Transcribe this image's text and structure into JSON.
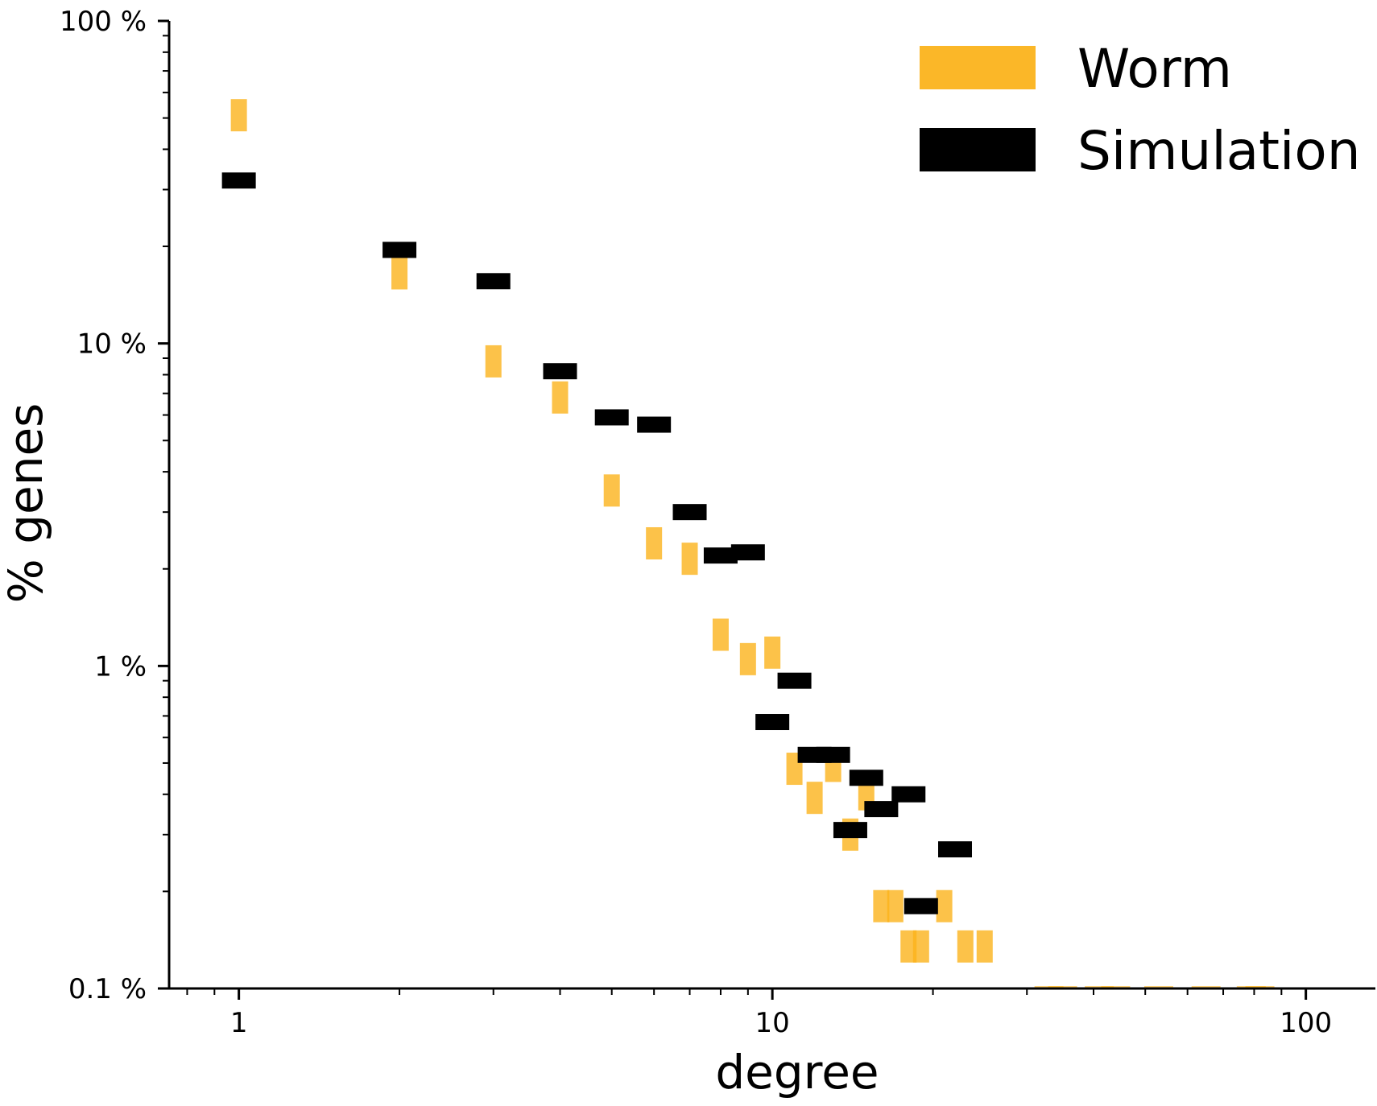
{
  "chart_data": {
    "type": "scatter",
    "xlabel": "degree",
    "ylabel": "% genes",
    "x_scale": "log",
    "y_scale": "log",
    "xlim": [
      0.74,
      135
    ],
    "ylim": [
      0.1,
      100
    ],
    "x_ticks": [
      {
        "value": 1,
        "label": "1"
      },
      {
        "value": 10,
        "label": "10"
      },
      {
        "value": 100,
        "label": "100"
      }
    ],
    "y_ticks": [
      {
        "value": 0.1,
        "label": "0.1 %"
      },
      {
        "value": 1,
        "label": "1 %"
      },
      {
        "value": 10,
        "label": "10 %"
      },
      {
        "value": 100,
        "label": "100 %"
      }
    ],
    "legend_position": "top-right",
    "series": [
      {
        "name": "Worm",
        "color": "#fbb31c",
        "marker": "vertical-bar",
        "points": [
          {
            "x": 1,
            "y": 51
          },
          {
            "x": 2,
            "y": 16.5
          },
          {
            "x": 3,
            "y": 8.8
          },
          {
            "x": 4,
            "y": 6.8
          },
          {
            "x": 5,
            "y": 3.5
          },
          {
            "x": 6,
            "y": 2.4
          },
          {
            "x": 7,
            "y": 2.15
          },
          {
            "x": 8,
            "y": 1.25
          },
          {
            "x": 9,
            "y": 1.05
          },
          {
            "x": 10,
            "y": 1.1
          },
          {
            "x": 11,
            "y": 0.48
          },
          {
            "x": 12,
            "y": 0.39
          },
          {
            "x": 13,
            "y": 0.49
          },
          {
            "x": 14,
            "y": 0.3
          },
          {
            "x": 15,
            "y": 0.4
          },
          {
            "x": 16,
            "y": 0.18
          },
          {
            "x": 17,
            "y": 0.18
          },
          {
            "x": 18,
            "y": 0.135
          },
          {
            "x": 19,
            "y": 0.135
          },
          {
            "x": 21,
            "y": 0.18
          },
          {
            "x": 23,
            "y": 0.135
          },
          {
            "x": 25,
            "y": 0.135
          }
        ]
      },
      {
        "name": "Simulation",
        "color": "#000000",
        "marker": "horizontal-bar",
        "points": [
          {
            "x": 1,
            "y": 32
          },
          {
            "x": 2,
            "y": 19.5
          },
          {
            "x": 3,
            "y": 15.6
          },
          {
            "x": 4,
            "y": 8.2
          },
          {
            "x": 5,
            "y": 5.9
          },
          {
            "x": 6,
            "y": 5.6
          },
          {
            "x": 7,
            "y": 3
          },
          {
            "x": 8,
            "y": 2.2
          },
          {
            "x": 9,
            "y": 2.25
          },
          {
            "x": 10,
            "y": 0.67
          },
          {
            "x": 11,
            "y": 0.9
          },
          {
            "x": 12,
            "y": 0.53
          },
          {
            "x": 13,
            "y": 0.53
          },
          {
            "x": 14,
            "y": 0.31
          },
          {
            "x": 15,
            "y": 0.45
          },
          {
            "x": 16,
            "y": 0.36
          },
          {
            "x": 18,
            "y": 0.4
          },
          {
            "x": 19,
            "y": 0.18
          },
          {
            "x": 22,
            "y": 0.27
          }
        ]
      }
    ]
  }
}
